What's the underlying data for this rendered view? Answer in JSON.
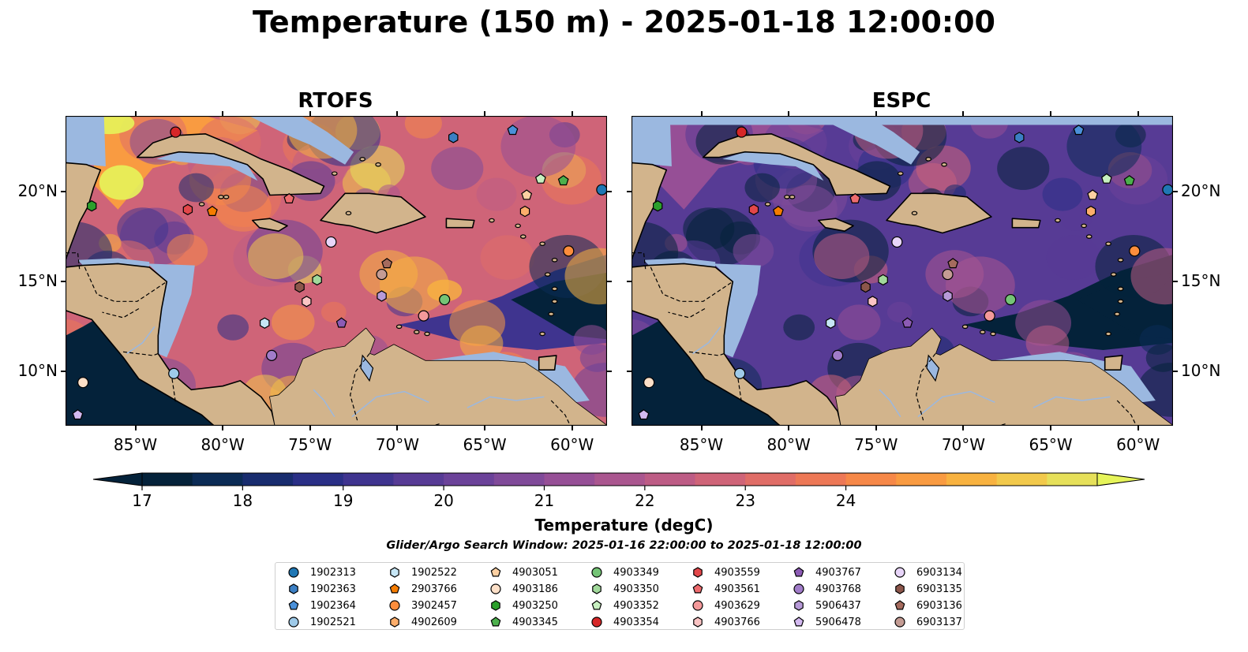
{
  "title": "Temperature (150 m) - 2025-01-18 12:00:00",
  "panels": [
    {
      "title": "RTOFS",
      "palette_shift": 0
    },
    {
      "title": "ESPC",
      "palette_shift": -0.35
    }
  ],
  "map": {
    "lon_ticks": [
      "85°W",
      "80°W",
      "75°W",
      "70°W",
      "65°W",
      "60°W"
    ],
    "lat_ticks": [
      "20°N",
      "15°N",
      "10°N"
    ],
    "colors": {
      "land": "#d2b48c",
      "shelf": "#9bb8e0",
      "coast": "#000000"
    }
  },
  "colorbar": {
    "label": "Temperature (degC)",
    "ticks": [
      "17",
      "18",
      "19",
      "20",
      "21",
      "22",
      "23",
      "24"
    ],
    "colors": [
      "#04223a",
      "#0b2b55",
      "#182c6e",
      "#2a2f86",
      "#3f348f",
      "#573b95",
      "#6b4299",
      "#804a99",
      "#964f96",
      "#aa568f",
      "#bd5c85",
      "#cf6478",
      "#e06d67",
      "#ed7856",
      "#f68848",
      "#f99b41",
      "#f8b240",
      "#f2c94b",
      "#e6e05a"
    ],
    "extend_low": "#04223a",
    "extend_high": "#e6f45a"
  },
  "search_window": "Glider/Argo Search Window: 2025-01-16 22:00:00 to 2025-01-18 12:00:00",
  "legend": [
    {
      "id": "1902313",
      "shape": "circle",
      "color": "#1f77b4"
    },
    {
      "id": "1902363",
      "shape": "hexagon",
      "color": "#3b7fc4"
    },
    {
      "id": "1902364",
      "shape": "pentagon",
      "color": "#4a90d9"
    },
    {
      "id": "1902521",
      "shape": "circle",
      "color": "#9ecae9"
    },
    {
      "id": "1902522",
      "shape": "hexagon",
      "color": "#c6e6f5"
    },
    {
      "id": "2903766",
      "shape": "pentagon",
      "color": "#f57c00"
    },
    {
      "id": "3902457",
      "shape": "circle",
      "color": "#fd8d3c"
    },
    {
      "id": "4902609",
      "shape": "hexagon",
      "color": "#fdae6b"
    },
    {
      "id": "4903051",
      "shape": "pentagon",
      "color": "#fdd0a2"
    },
    {
      "id": "4903186",
      "shape": "circle",
      "color": "#fde0c8"
    },
    {
      "id": "4903250",
      "shape": "hexagon",
      "color": "#2ca02c"
    },
    {
      "id": "4903345",
      "shape": "pentagon",
      "color": "#4cb04c"
    },
    {
      "id": "4903349",
      "shape": "circle",
      "color": "#74c476"
    },
    {
      "id": "4903350",
      "shape": "hexagon",
      "color": "#a1d99b"
    },
    {
      "id": "4903352",
      "shape": "pentagon",
      "color": "#c7f0c0"
    },
    {
      "id": "4903354",
      "shape": "circle",
      "color": "#d62728"
    },
    {
      "id": "4903559",
      "shape": "hexagon",
      "color": "#e3474a"
    },
    {
      "id": "4903561",
      "shape": "pentagon",
      "color": "#ee6b6e"
    },
    {
      "id": "4903629",
      "shape": "circle",
      "color": "#f4999a"
    },
    {
      "id": "4903766",
      "shape": "hexagon",
      "color": "#fbc4c4"
    },
    {
      "id": "4903767",
      "shape": "pentagon",
      "color": "#8c5bb5"
    },
    {
      "id": "4903768",
      "shape": "circle",
      "color": "#a17cc9"
    },
    {
      "id": "5906437",
      "shape": "hexagon",
      "color": "#b79ad8"
    },
    {
      "id": "5906478",
      "shape": "pentagon",
      "color": "#d3b9f0"
    },
    {
      "id": "6903134",
      "shape": "circle",
      "color": "#e8d5f9"
    },
    {
      "id": "6903135",
      "shape": "hexagon",
      "color": "#8c564b"
    },
    {
      "id": "6903136",
      "shape": "pentagon",
      "color": "#a56b5e"
    },
    {
      "id": "6903137",
      "shape": "circle",
      "color": "#c49c94"
    }
  ],
  "floats": [
    {
      "id": "4903354",
      "lon": -82.7,
      "lat": 23.3
    },
    {
      "id": "1902313",
      "lon": -58.3,
      "lat": 20.1
    },
    {
      "id": "1902363",
      "lon": -66.8,
      "lat": 23.0
    },
    {
      "id": "1902364",
      "lon": -63.4,
      "lat": 23.4
    },
    {
      "id": "4903250",
      "lon": -87.5,
      "lat": 19.2
    },
    {
      "id": "4903559",
      "lon": -82.0,
      "lat": 19.0
    },
    {
      "id": "2903766",
      "lon": -80.6,
      "lat": 18.9
    },
    {
      "id": "4903561",
      "lon": -76.2,
      "lat": 19.6
    },
    {
      "id": "4903352",
      "lon": -61.8,
      "lat": 20.7
    },
    {
      "id": "4903345",
      "lon": -60.5,
      "lat": 20.6
    },
    {
      "id": "4903051",
      "lon": -62.6,
      "lat": 19.8
    },
    {
      "id": "4902609",
      "lon": -62.7,
      "lat": 18.9
    },
    {
      "id": "6903134",
      "lon": -73.8,
      "lat": 17.2
    },
    {
      "id": "6903136",
      "lon": -70.6,
      "lat": 16.0
    },
    {
      "id": "3902457",
      "lon": -60.2,
      "lat": 16.7
    },
    {
      "id": "4903350",
      "lon": -74.6,
      "lat": 15.1
    },
    {
      "id": "6903137",
      "lon": -70.9,
      "lat": 15.4
    },
    {
      "id": "6903135",
      "lon": -75.6,
      "lat": 14.7
    },
    {
      "id": "4903766",
      "lon": -75.2,
      "lat": 13.9
    },
    {
      "id": "5906437",
      "lon": -70.9,
      "lat": 14.2
    },
    {
      "id": "4903349",
      "lon": -67.3,
      "lat": 14.0
    },
    {
      "id": "1902522",
      "lon": -77.6,
      "lat": 12.7
    },
    {
      "id": "4903767",
      "lon": -73.2,
      "lat": 12.7
    },
    {
      "id": "4903629",
      "lon": -68.5,
      "lat": 13.1
    },
    {
      "id": "4903768",
      "lon": -77.2,
      "lat": 10.9
    },
    {
      "id": "1902521",
      "lon": -82.8,
      "lat": 9.9
    },
    {
      "id": "4903186",
      "lon": -88.0,
      "lat": 9.4
    },
    {
      "id": "5906478",
      "lon": -88.3,
      "lat": 7.6
    }
  ]
}
